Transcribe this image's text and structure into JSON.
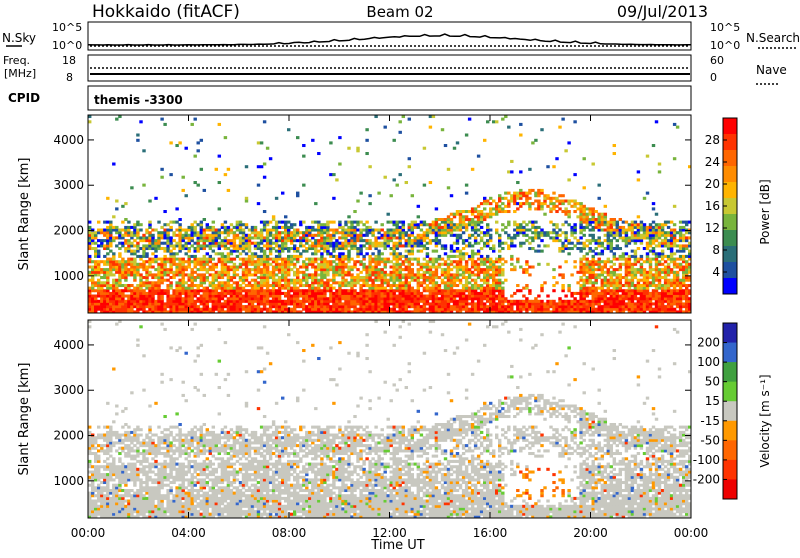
{
  "header": {
    "station": "Hokkaido (fitACF)",
    "beam": "Beam 02",
    "date": "09/Jul/2013"
  },
  "top_panels": {
    "nsky_label": "N.Sky",
    "nsky_ticks": [
      "10^5",
      "10^0"
    ],
    "nsearch_label": "N.Search",
    "nsearch_ticks": [
      "10^5",
      "10^0"
    ],
    "freq_label_1": "Freq.",
    "freq_label_2": "[MHz]",
    "freq_ticks": [
      "18",
      "8"
    ],
    "nave_label": "Nave",
    "nave_ticks": [
      "60",
      "0"
    ],
    "cpid_label": "CPID",
    "cpid_value": "themis -3300"
  },
  "chart_data": [
    {
      "type": "heatmap",
      "name": "power",
      "ylabel": "Slant Range [km]",
      "xlabel": "",
      "x_ticks": [
        "00:00",
        "04:00",
        "08:00",
        "12:00",
        "16:00",
        "20:00",
        "00:00"
      ],
      "y_ticks": [
        "4000",
        "3000",
        "2000",
        "1000"
      ],
      "xlim_hours": [
        0,
        24
      ],
      "ylim_km": [
        180,
        4550
      ],
      "colorbar": {
        "title": "Power [dB]",
        "ticks": [
          "28",
          "24",
          "20",
          "16",
          "12",
          "8",
          "4"
        ],
        "colors": [
          "#ff0000",
          "#ff3300",
          "#ff6600",
          "#ff8c00",
          "#ffb400",
          "#c8c832",
          "#78b43c",
          "#3c8c50",
          "#2a6e78",
          "#1e50a0",
          "#0000ff"
        ]
      }
    },
    {
      "type": "heatmap",
      "name": "velocity",
      "ylabel": "Slant Range [km]",
      "xlabel": "Time UT",
      "x_ticks": [
        "00:00",
        "04:00",
        "08:00",
        "12:00",
        "16:00",
        "20:00",
        "00:00"
      ],
      "y_ticks": [
        "4000",
        "3000",
        "2000",
        "1000"
      ],
      "xlim_hours": [
        0,
        24
      ],
      "ylim_km": [
        180,
        4550
      ],
      "colorbar": {
        "title": "Velocity [m s⁻¹]",
        "ticks": [
          "200",
          "100",
          "50",
          "15",
          "-15",
          "-50",
          "-100",
          "-200"
        ],
        "colors": [
          "#2222aa",
          "#3366cc",
          "#3fa03f",
          "#66cc33",
          "#c8c8c0",
          "#ff9900",
          "#ff6600",
          "#ff3300",
          "#ee0000"
        ]
      }
    }
  ],
  "colors": {
    "ground": "#c8c8c0",
    "axis": "#000000"
  }
}
